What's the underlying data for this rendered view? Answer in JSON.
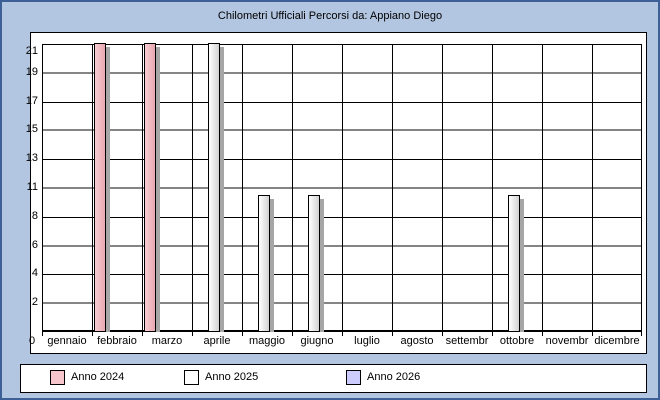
{
  "window": {
    "title": "Chilometri Ufficiali Percorsi da: Appiano Diego"
  },
  "colors": {
    "background": "#b3c6e1",
    "window_border": "#3d6097",
    "panel_background": "#ffffff",
    "grid_gray": "#858585",
    "grid_black": "#000000",
    "bar_shadow": "#a6a6a6",
    "anno_2024": "#eeb0b8",
    "anno_2025": "#ffffff",
    "anno_2026": "#ccccff"
  },
  "chart_data": {
    "type": "bar",
    "title": "Chilometri Ufficiali Percorsi da: Appiano Diego",
    "categories": [
      "gennaio",
      "febbraio",
      "marzo",
      "aprile",
      "maggio",
      "giugno",
      "luglio",
      "agosto",
      "settembr",
      "ottobre",
      "novembr",
      "dicembre"
    ],
    "series": [
      {
        "name": "Anno 2024",
        "color": "#eeb0b8",
        "fill_gradient": [
          "#f7ced3",
          "#e8a7b0"
        ],
        "values": [
          0,
          21.1,
          21.1,
          0,
          0,
          0,
          0,
          0,
          0,
          0,
          0,
          0
        ]
      },
      {
        "name": "Anno 2025",
        "color": "#ffffff",
        "fill_gradient": [
          "#ffffff",
          "#d2d2d2"
        ],
        "values": [
          0,
          0,
          0,
          21.1,
          10,
          10,
          0,
          0,
          0,
          10,
          0,
          0
        ]
      },
      {
        "name": "Anno 2026",
        "color": "#ccccff",
        "fill_gradient": [
          "#e2e2ff",
          "#b9b9ef"
        ],
        "values": [
          0,
          0,
          0,
          0,
          0,
          0,
          0,
          0,
          0,
          0,
          0,
          0
        ]
      }
    ],
    "xlabel": "",
    "ylabel": "",
    "y_axis": {
      "min": 0,
      "max": 21,
      "tick_interval": 2.1,
      "tick_labels": [
        "0",
        "2",
        "4",
        "6",
        "8",
        "11",
        "13",
        "15",
        "17",
        "19",
        "21"
      ]
    },
    "origin_label": "0",
    "grid": "on",
    "grid_style": "alternating gray-thick / black-thin horizontal, black-thin vertical per month",
    "legend_position": "bottom"
  },
  "legend": {
    "items": [
      {
        "label": "Anno 2024",
        "color": "#f6c6cc"
      },
      {
        "label": "Anno 2025",
        "color": "#ffffff"
      },
      {
        "label": "Anno 2026",
        "color": "#ccccff"
      }
    ]
  }
}
